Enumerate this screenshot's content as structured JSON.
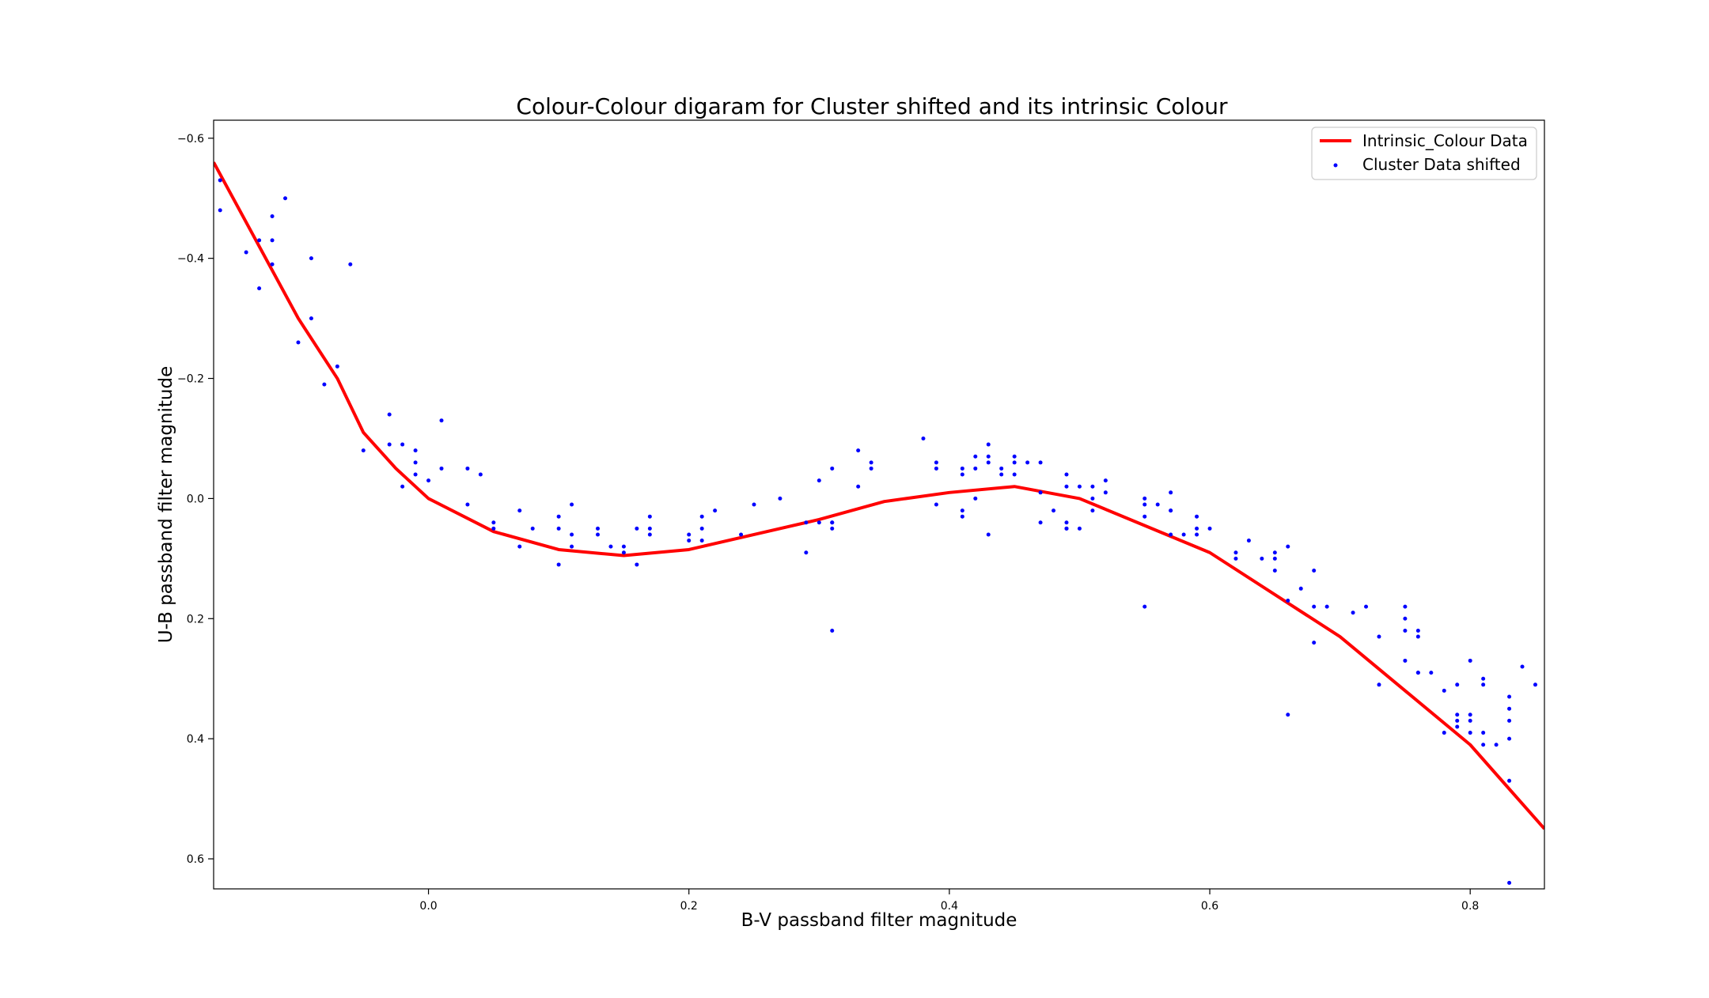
{
  "chart_data": {
    "type": "scatter",
    "title": "Colour-Colour digaram for Cluster shifted and its intrinsic Colour",
    "xlabel": "B-V passband filter magnitude",
    "ylabel": "U-B passband filter magnitude",
    "xlim": [
      -0.165,
      0.857
    ],
    "ylim": [
      0.65,
      -0.63
    ],
    "y_inverted": true,
    "x_ticks": [
      0.0,
      0.2,
      0.4,
      0.6,
      0.8
    ],
    "x_tick_labels": [
      "0.0",
      "0.2",
      "0.4",
      "0.6",
      "0.8"
    ],
    "y_ticks": [
      -0.6,
      -0.4,
      -0.2,
      0.0,
      0.2,
      0.4,
      0.6
    ],
    "y_tick_labels": [
      "−0.6",
      "−0.4",
      "−0.2",
      "0.0",
      "0.2",
      "0.4",
      "0.6"
    ],
    "grid": false,
    "legend_position": "top-right",
    "series": [
      {
        "name": "Intrinsic_Colour Data",
        "type": "line",
        "color": "#ff0000",
        "x": [
          -0.165,
          -0.1,
          -0.07,
          -0.05,
          -0.025,
          0.0,
          0.05,
          0.1,
          0.15,
          0.2,
          0.25,
          0.3,
          0.35,
          0.4,
          0.45,
          0.5,
          0.6,
          0.7,
          0.8,
          0.857
        ],
        "y": [
          -0.56,
          -0.3,
          -0.2,
          -0.11,
          -0.05,
          0.0,
          0.055,
          0.085,
          0.095,
          0.085,
          0.06,
          0.035,
          0.005,
          -0.01,
          -0.02,
          0.0,
          0.09,
          0.23,
          0.41,
          0.55
        ]
      },
      {
        "name": "Cluster Data shifted",
        "type": "scatter",
        "color": "#0000ff",
        "x": [
          -0.16,
          -0.16,
          -0.14,
          -0.13,
          -0.13,
          -0.12,
          -0.12,
          -0.12,
          -0.11,
          -0.1,
          -0.09,
          -0.09,
          -0.08,
          -0.07,
          -0.06,
          -0.05,
          -0.03,
          -0.03,
          -0.02,
          -0.02,
          -0.01,
          -0.01,
          -0.01,
          0.0,
          0.01,
          0.01,
          0.03,
          0.03,
          0.04,
          0.05,
          0.05,
          0.07,
          0.07,
          0.08,
          0.1,
          0.1,
          0.1,
          0.11,
          0.11,
          0.11,
          0.13,
          0.13,
          0.14,
          0.15,
          0.15,
          0.16,
          0.16,
          0.17,
          0.17,
          0.17,
          0.2,
          0.2,
          0.21,
          0.21,
          0.21,
          0.22,
          0.24,
          0.25,
          0.27,
          0.29,
          0.29,
          0.3,
          0.3,
          0.31,
          0.31,
          0.31,
          0.31,
          0.31,
          0.33,
          0.33,
          0.34,
          0.34,
          0.38,
          0.39,
          0.39,
          0.39,
          0.41,
          0.41,
          0.41,
          0.41,
          0.42,
          0.42,
          0.42,
          0.43,
          0.43,
          0.43,
          0.43,
          0.44,
          0.44,
          0.45,
          0.45,
          0.45,
          0.46,
          0.47,
          0.47,
          0.47,
          0.48,
          0.49,
          0.49,
          0.49,
          0.49,
          0.49,
          0.5,
          0.5,
          0.51,
          0.51,
          0.51,
          0.52,
          0.52,
          0.55,
          0.55,
          0.55,
          0.55,
          0.56,
          0.57,
          0.57,
          0.57,
          0.57,
          0.58,
          0.59,
          0.59,
          0.59,
          0.6,
          0.62,
          0.62,
          0.63,
          0.64,
          0.65,
          0.65,
          0.65,
          0.66,
          0.66,
          0.66,
          0.67,
          0.68,
          0.68,
          0.68,
          0.69,
          0.71,
          0.72,
          0.73,
          0.73,
          0.75,
          0.75,
          0.75,
          0.75,
          0.76,
          0.76,
          0.76,
          0.76,
          0.77,
          0.78,
          0.78,
          0.79,
          0.79,
          0.79,
          0.79,
          0.8,
          0.8,
          0.8,
          0.8,
          0.81,
          0.81,
          0.81,
          0.81,
          0.82,
          0.83,
          0.83,
          0.83,
          0.83,
          0.83,
          0.83,
          0.84,
          0.85
        ],
        "y": [
          -0.53,
          -0.48,
          -0.41,
          -0.43,
          -0.35,
          -0.47,
          -0.43,
          -0.39,
          -0.5,
          -0.26,
          -0.4,
          -0.3,
          -0.19,
          -0.22,
          -0.39,
          -0.08,
          -0.14,
          -0.09,
          -0.09,
          -0.02,
          -0.08,
          -0.06,
          -0.04,
          -0.03,
          -0.13,
          -0.05,
          -0.05,
          0.01,
          -0.04,
          0.04,
          0.05,
          0.02,
          0.08,
          0.05,
          0.03,
          0.05,
          0.11,
          0.01,
          0.06,
          0.08,
          0.05,
          0.06,
          0.08,
          0.08,
          0.09,
          0.05,
          0.11,
          0.03,
          0.05,
          0.06,
          0.06,
          0.07,
          0.03,
          0.05,
          0.07,
          0.02,
          0.06,
          0.01,
          0.0,
          0.04,
          0.09,
          -0.03,
          0.04,
          -0.05,
          0.04,
          0.04,
          0.05,
          0.22,
          -0.08,
          -0.02,
          -0.06,
          -0.05,
          -0.1,
          -0.06,
          -0.05,
          0.01,
          -0.05,
          -0.04,
          0.02,
          0.03,
          -0.07,
          -0.05,
          0.0,
          -0.09,
          -0.07,
          -0.06,
          0.06,
          -0.05,
          -0.04,
          -0.07,
          -0.06,
          -0.04,
          -0.06,
          -0.06,
          0.04,
          -0.01,
          0.02,
          -0.04,
          -0.02,
          0.04,
          0.05,
          0.05,
          -0.02,
          0.05,
          -0.02,
          0.0,
          0.02,
          -0.03,
          -0.01,
          0.0,
          0.01,
          0.03,
          0.18,
          0.01,
          -0.01,
          0.02,
          0.02,
          0.06,
          0.06,
          0.03,
          0.05,
          0.06,
          0.05,
          0.09,
          0.1,
          0.07,
          0.1,
          0.09,
          0.1,
          0.12,
          0.08,
          0.17,
          0.36,
          0.15,
          0.12,
          0.18,
          0.24,
          0.18,
          0.19,
          0.18,
          0.23,
          0.31,
          0.18,
          0.2,
          0.22,
          0.27,
          0.22,
          0.23,
          0.29,
          0.29,
          0.29,
          0.32,
          0.39,
          0.31,
          0.36,
          0.37,
          0.38,
          0.27,
          0.36,
          0.37,
          0.39,
          0.3,
          0.31,
          0.39,
          0.41,
          0.41,
          0.33,
          0.35,
          0.37,
          0.4,
          0.47,
          0.64,
          0.28,
          0.31
        ]
      }
    ]
  }
}
